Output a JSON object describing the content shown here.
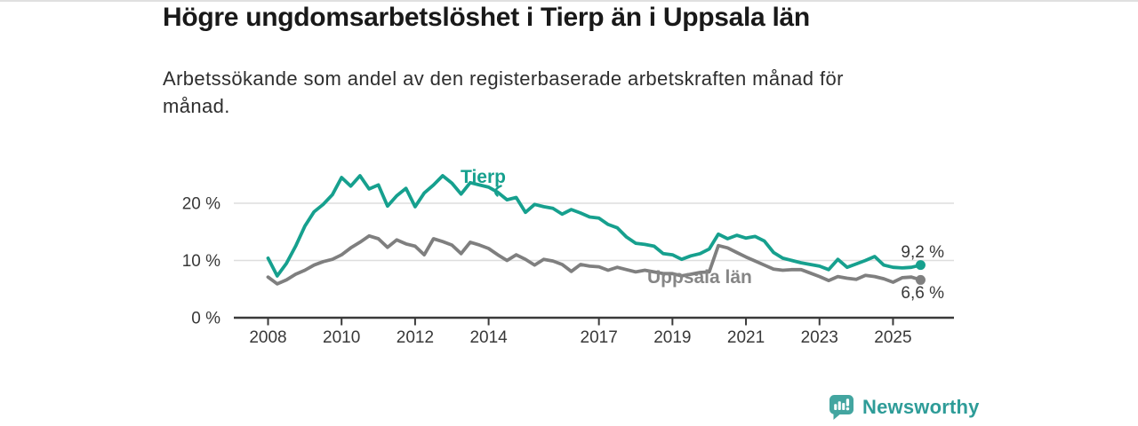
{
  "page": {
    "background": "#ffffff",
    "top_border_color": "#e0e0e0"
  },
  "header": {
    "title": "Högre ungdomsarbetslöshet i Tierp än i Uppsala län",
    "subtitle": "Arbetssökande som andel av den registerbaserade arbetskraften månad för månad."
  },
  "chart_data": {
    "type": "line",
    "unit": "%",
    "x_start": 2008,
    "x_step": 0.25,
    "xlim": [
      2007.1,
      2026.7
    ],
    "ylim": [
      0,
      27
    ],
    "grid": "horizontal",
    "xticks": [
      "2008",
      "2010",
      "2012",
      "2014",
      "2017",
      "2019",
      "2021",
      "2023",
      "2025"
    ],
    "xtick_years": [
      2008,
      2010,
      2012,
      2014,
      2017,
      2019,
      2021,
      2023,
      2025
    ],
    "yticks": [
      {
        "value": 0,
        "label": "0 %"
      },
      {
        "value": 10,
        "label": "10 %"
      },
      {
        "value": 20,
        "label": "20 %"
      }
    ],
    "series": [
      {
        "name": "Uppsala län",
        "color": "#7f7f7f",
        "label_color": "#868686",
        "end_label": "6,6 %",
        "end_value": 6.6,
        "values": [
          7.1,
          5.9,
          6.6,
          7.6,
          8.3,
          9.2,
          9.8,
          10.2,
          11.0,
          12.2,
          13.2,
          14.3,
          13.8,
          12.3,
          13.6,
          12.9,
          12.5,
          11.0,
          13.8,
          13.3,
          12.7,
          11.2,
          13.2,
          12.7,
          12.1,
          11.0,
          10.0,
          11.0,
          10.2,
          9.2,
          10.2,
          9.9,
          9.3,
          8.1,
          9.3,
          9.0,
          8.9,
          8.3,
          8.8,
          8.4,
          8.0,
          8.3,
          8.0,
          7.7,
          7.7,
          7.3,
          7.6,
          7.9,
          8.0,
          12.6,
          12.2,
          11.4,
          10.6,
          9.9,
          9.2,
          8.5,
          8.3,
          8.4,
          8.4,
          7.8,
          7.2,
          6.5,
          7.2,
          6.9,
          6.7,
          7.4,
          7.2,
          6.8,
          6.2,
          7.0,
          7.1,
          6.6
        ]
      },
      {
        "name": "Tierp",
        "color": "#16a08e",
        "label_color": "#16a08e",
        "end_label": "9,2 %",
        "end_value": 9.2,
        "values": [
          10.4,
          7.3,
          9.5,
          12.5,
          16.0,
          18.5,
          19.8,
          21.5,
          24.5,
          23.0,
          24.8,
          22.5,
          23.2,
          19.5,
          21.3,
          22.6,
          19.4,
          21.8,
          23.2,
          24.8,
          23.5,
          21.6,
          23.6,
          23.2,
          22.8,
          21.9,
          20.6,
          21.0,
          18.4,
          19.8,
          19.4,
          19.1,
          18.1,
          18.9,
          18.3,
          17.6,
          17.4,
          16.3,
          15.7,
          14.1,
          13.0,
          12.8,
          12.5,
          11.2,
          11.0,
          10.2,
          10.8,
          11.2,
          12.0,
          14.6,
          13.8,
          14.4,
          13.9,
          14.2,
          13.4,
          11.4,
          10.4,
          10.0,
          9.6,
          9.3,
          9.0,
          8.4,
          10.2,
          8.8,
          9.4,
          10.0,
          10.7,
          9.2,
          8.8,
          8.7,
          8.8,
          9.2
        ]
      }
    ]
  },
  "footer": {
    "brand": "Newsworthy",
    "brand_color": "#2e9c98",
    "logo_icon": "bar-chart-speech-bubble-icon"
  }
}
